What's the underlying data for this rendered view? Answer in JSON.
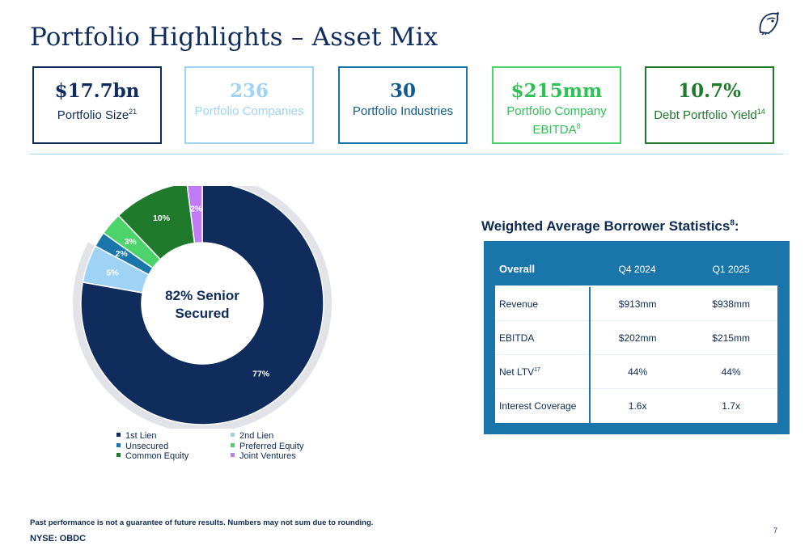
{
  "title": "Portfolio Highlights – Asset Mix",
  "kpis": [
    {
      "value": "$17.7bn",
      "label": "Portfolio Size",
      "sup": "21",
      "color": "#0f2c5c",
      "border": "#0f2c5c"
    },
    {
      "value": "236",
      "label": "Portfolio Companies",
      "sup": "",
      "color": "#9fd3f5",
      "border": "#9fd3f5"
    },
    {
      "value": "30",
      "label": "Portfolio Industries",
      "sup": "",
      "color": "#0f5b92",
      "border": "#1a75ab"
    },
    {
      "value": "$215mm",
      "label": "Portfolio Company EBITDA",
      "sup": "8",
      "color": "#2fc155",
      "border": "#4cd36b"
    },
    {
      "value": "10.7%",
      "label": "Debt Portfolio Yield",
      "sup": "14",
      "color": "#1f7a2c",
      "border": "#1f7a2c"
    }
  ],
  "chart_data": {
    "type": "pie",
    "center_label": "82% Senior Secured",
    "slices": [
      {
        "name": "1st Lien",
        "value": 77,
        "label": "77%",
        "color": "#0f2c5c"
      },
      {
        "name": "2nd Lien",
        "value": 5,
        "label": "5%",
        "color": "#9fd3f5"
      },
      {
        "name": "Unsecured",
        "value": 2,
        "label": "2%",
        "color": "#1a75ab"
      },
      {
        "name": "Preferred Equity",
        "value": 3,
        "label": "3%",
        "color": "#4cd36b"
      },
      {
        "name": "Common Equity",
        "value": 10,
        "label": "10%",
        "color": "#1f7a2c"
      },
      {
        "name": "Joint Ventures",
        "value": 2,
        "label": "2%",
        "color": "#c07cf5"
      }
    ],
    "legend_placement": "bottom",
    "ring_color": "#e2e3e8"
  },
  "stats": {
    "title": "Weighted Average Borrower Statistics",
    "title_sup": "8",
    "title_suffix": ":",
    "header": [
      "Overall",
      "Q4 2024",
      "Q1 2025"
    ],
    "rows": [
      {
        "label": "Revenue",
        "sup": "",
        "q4": "$913mm",
        "q1": "$938mm"
      },
      {
        "label": "EBITDA",
        "sup": "",
        "q4": "$202mm",
        "q1": "$215mm"
      },
      {
        "label": "Net LTV",
        "sup": "17",
        "q4": "44%",
        "q1": "44%"
      },
      {
        "label": "Interest Coverage",
        "sup": "",
        "q4": "1.6x",
        "q1": "1.7x"
      }
    ]
  },
  "footnote": "Past performance is not a guarantee of future results. Numbers may not sum due to rounding.",
  "ticker": "NYSE: OBDC",
  "page_number": "7",
  "logo_icon": "owl-logo-icon"
}
